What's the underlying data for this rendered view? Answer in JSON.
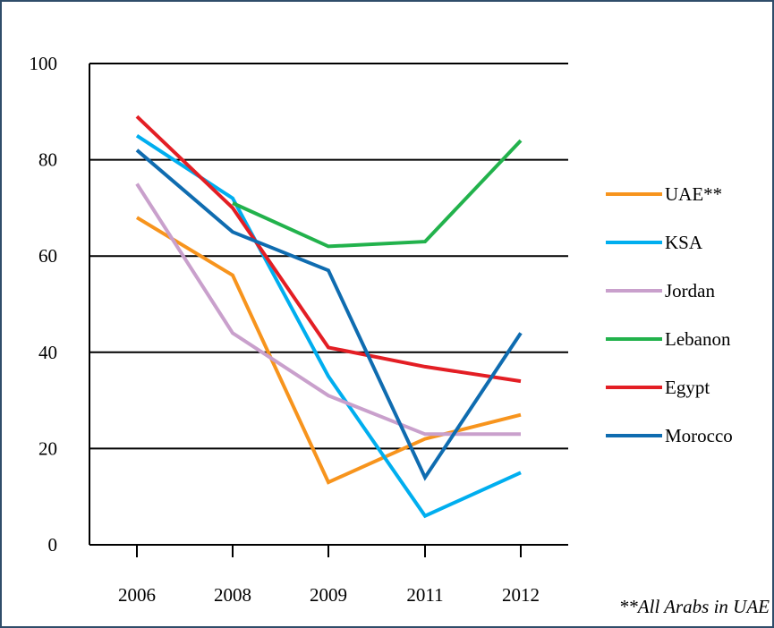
{
  "chart_data": {
    "type": "line",
    "categories": [
      "2006",
      "2008",
      "2009",
      "2011",
      "2012"
    ],
    "ylim": [
      0,
      100
    ],
    "yticks": [
      0,
      20,
      40,
      60,
      80,
      100
    ],
    "grid": true,
    "legend_position": "right",
    "series": [
      {
        "name": "UAE**",
        "color": "#f7941d",
        "values": [
          68,
          56,
          13,
          22,
          27
        ]
      },
      {
        "name": "KSA",
        "color": "#00aeef",
        "values": [
          85,
          72,
          35,
          6,
          15
        ]
      },
      {
        "name": "Jordan",
        "color": "#c9a0cc",
        "values": [
          75,
          44,
          31,
          23,
          23
        ]
      },
      {
        "name": "Lebanon",
        "color": "#22b24c",
        "values": [
          null,
          71,
          62,
          63,
          84
        ]
      },
      {
        "name": "Egypt",
        "color": "#e31e24",
        "values": [
          89,
          70,
          41,
          37,
          34
        ]
      },
      {
        "name": "Morocco",
        "color": "#0f6cb0",
        "values": [
          82,
          65,
          57,
          14,
          44
        ]
      }
    ],
    "annotation": "**All Arabs in UAE"
  },
  "colors": {
    "frame_border": "#2f4d6a",
    "axis": "#000000",
    "grid": "#000000"
  }
}
